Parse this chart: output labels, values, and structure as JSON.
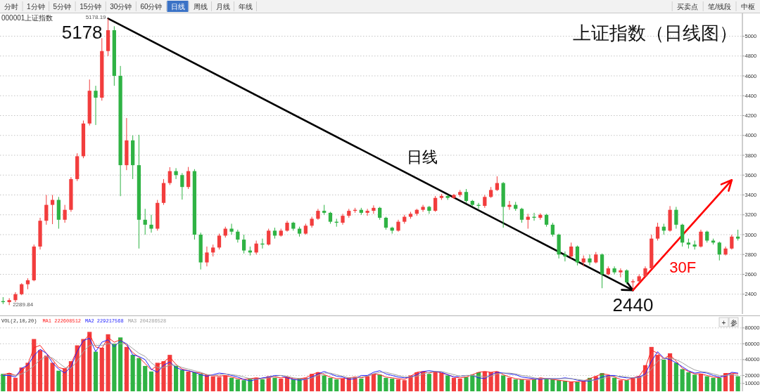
{
  "chart_data": [
    {
      "type": "candlestick",
      "title": "上证指数（日线图）",
      "categories": [
        null,
        null,
        null,
        null,
        null,
        null,
        null,
        null,
        null,
        null,
        null,
        null,
        null,
        null,
        null,
        null,
        null,
        null,
        null,
        null,
        null,
        null,
        null,
        null,
        null,
        null,
        null,
        null,
        null,
        null,
        null,
        null,
        null,
        null,
        null,
        null,
        null,
        null,
        null,
        null,
        null,
        null,
        null,
        null,
        null,
        null,
        null,
        null,
        null,
        null,
        null,
        null,
        null,
        null,
        null,
        null,
        null,
        null,
        null,
        null,
        null,
        null,
        null,
        null,
        null,
        null,
        null,
        null,
        null,
        null,
        null,
        null,
        null,
        null,
        null,
        null,
        null,
        null,
        null,
        null,
        null,
        null,
        null,
        null,
        null,
        null,
        null,
        null,
        null,
        null,
        null,
        null,
        null,
        null,
        null,
        null,
        null,
        null,
        null,
        null,
        null,
        null,
        null,
        null,
        null,
        null,
        null,
        null,
        null,
        null,
        null,
        null,
        null,
        null,
        null,
        null,
        null,
        null,
        null,
        null
      ],
      "ohlc": [
        [
          2330,
          2370,
          2300,
          2320
        ],
        [
          2320,
          2360,
          2289.84,
          2340
        ],
        [
          2340,
          2420,
          2320,
          2400
        ],
        [
          2400,
          2510,
          2390,
          2500
        ],
        [
          2500,
          2560,
          2450,
          2540
        ],
        [
          2540,
          2900,
          2530,
          2880
        ],
        [
          2880,
          3170,
          2850,
          3140
        ],
        [
          3140,
          3400,
          3100,
          3300
        ],
        [
          3300,
          3400,
          3106,
          3350
        ],
        [
          3350,
          3380,
          3060,
          3150
        ],
        [
          3150,
          3300,
          3120,
          3250
        ],
        [
          3250,
          3580,
          3230,
          3560
        ],
        [
          3560,
          3820,
          3540,
          3790
        ],
        [
          3790,
          4150,
          3770,
          4120
        ],
        [
          4120,
          4563,
          4100,
          4450
        ],
        [
          4450,
          4500,
          4105,
          4380
        ],
        [
          4380,
          4980,
          4350,
          4850
        ],
        [
          4850,
          5178.19,
          4800,
          5060
        ],
        [
          5060,
          5100,
          4500,
          4600
        ],
        [
          4600,
          4700,
          3388,
          3700
        ],
        [
          3700,
          4175,
          3650,
          3950
        ],
        [
          3950,
          4000,
          3560,
          3700
        ],
        [
          3700,
          4006,
          2860,
          3150
        ],
        [
          3150,
          3260,
          3000,
          3100
        ],
        [
          3100,
          3200,
          3020,
          3060
        ],
        [
          3060,
          3350,
          3040,
          3320
        ],
        [
          3320,
          3560,
          3300,
          3520
        ],
        [
          3520,
          3680,
          3500,
          3640
        ],
        [
          3640,
          3670,
          3560,
          3600
        ],
        [
          3600,
          3620,
          3353,
          3480
        ],
        [
          3480,
          3682,
          3460,
          3640
        ],
        [
          3640,
          3660,
          2950,
          3000
        ],
        [
          3000,
          3020,
          2649,
          2720
        ],
        [
          2720,
          2880,
          2680,
          2820
        ],
        [
          2820,
          2900,
          2780,
          2870
        ],
        [
          2870,
          3010,
          2850,
          2990
        ],
        [
          2990,
          3080,
          2970,
          3060
        ],
        [
          3060,
          3110,
          3000,
          3030
        ],
        [
          3030,
          3050,
          2920,
          2950
        ],
        [
          2950,
          3000,
          2810,
          2840
        ],
        [
          2840,
          2880,
          2790,
          2820
        ],
        [
          2820,
          2940,
          2800,
          2910
        ],
        [
          2910,
          2960,
          2860,
          2900
        ],
        [
          2900,
          3060,
          2890,
          3040
        ],
        [
          3040,
          3070,
          2960,
          2990
        ],
        [
          2990,
          3060,
          2980,
          3040
        ],
        [
          3040,
          3140,
          3030,
          3120
        ],
        [
          3120,
          3130,
          3040,
          3060
        ],
        [
          3060,
          3080,
          2980,
          3010
        ],
        [
          3010,
          3110,
          3000,
          3090
        ],
        [
          3090,
          3180,
          3070,
          3160
        ],
        [
          3160,
          3260,
          3150,
          3240
        ],
        [
          3240,
          3300,
          3200,
          3220
        ],
        [
          3220,
          3230,
          3110,
          3130
        ],
        [
          3130,
          3160,
          3080,
          3120
        ],
        [
          3120,
          3210,
          3100,
          3190
        ],
        [
          3190,
          3260,
          3170,
          3240
        ],
        [
          3240,
          3270,
          3220,
          3250
        ],
        [
          3250,
          3270,
          3200,
          3220
        ],
        [
          3220,
          3260,
          3190,
          3240
        ],
        [
          3240,
          3295,
          3210,
          3270
        ],
        [
          3270,
          3280,
          3150,
          3170
        ],
        [
          3170,
          3180,
          3050,
          3070
        ],
        [
          3070,
          3080,
          3010,
          3040
        ],
        [
          3040,
          3150,
          3030,
          3130
        ],
        [
          3130,
          3200,
          3110,
          3180
        ],
        [
          3180,
          3230,
          3160,
          3210
        ],
        [
          3210,
          3260,
          3190,
          3250
        ],
        [
          3250,
          3300,
          3230,
          3280
        ],
        [
          3280,
          3290,
          3210,
          3240
        ],
        [
          3240,
          3390,
          3230,
          3370
        ],
        [
          3370,
          3410,
          3350,
          3390
        ],
        [
          3390,
          3400,
          3350,
          3370
        ],
        [
          3370,
          3410,
          3360,
          3400
        ],
        [
          3400,
          3450,
          3380,
          3430
        ],
        [
          3430,
          3460,
          3320,
          3340
        ],
        [
          3340,
          3350,
          3290,
          3300
        ],
        [
          3300,
          3320,
          3260,
          3290
        ],
        [
          3290,
          3400,
          3270,
          3380
        ],
        [
          3380,
          3480,
          3370,
          3450
        ],
        [
          3450,
          3588,
          3440,
          3520
        ],
        [
          3520,
          3530,
          3070,
          3280
        ],
        [
          3280,
          3340,
          3250,
          3300
        ],
        [
          3300,
          3330,
          3240,
          3260
        ],
        [
          3260,
          3270,
          3120,
          3150
        ],
        [
          3150,
          3210,
          3060,
          3180
        ],
        [
          3180,
          3220,
          3140,
          3170
        ],
        [
          3170,
          3215,
          3150,
          3200
        ],
        [
          3200,
          3210,
          3080,
          3100
        ],
        [
          3100,
          3120,
          2980,
          3000
        ],
        [
          3000,
          3010,
          2760,
          2800
        ],
        [
          2800,
          2830,
          2730,
          2780
        ],
        [
          2780,
          2920,
          2760,
          2880
        ],
        [
          2880,
          2890,
          2690,
          2720
        ],
        [
          2720,
          2790,
          2680,
          2760
        ],
        [
          2760,
          2800,
          2690,
          2720
        ],
        [
          2720,
          2825,
          2710,
          2800
        ],
        [
          2800,
          2810,
          2460,
          2600
        ],
        [
          2600,
          2680,
          2590,
          2660
        ],
        [
          2660,
          2680,
          2600,
          2620
        ],
        [
          2620,
          2660,
          2570,
          2640
        ],
        [
          2640,
          2650,
          2500,
          2520
        ],
        [
          2520,
          2550,
          2440,
          2530
        ],
        [
          2530,
          2600,
          2510,
          2580
        ],
        [
          2580,
          2680,
          2570,
          2660
        ],
        [
          2660,
          3000,
          2650,
          2960
        ],
        [
          2960,
          3120,
          2940,
          3080
        ],
        [
          3080,
          3110,
          3000,
          3040
        ],
        [
          3040,
          3288,
          3030,
          3250
        ],
        [
          3250,
          3280,
          3060,
          3100
        ],
        [
          3100,
          3110,
          2880,
          2920
        ],
        [
          2920,
          2960,
          2860,
          2900
        ],
        [
          2900,
          2940,
          2850,
          2880
        ],
        [
          2880,
          3050,
          2870,
          3030
        ],
        [
          3030,
          3040,
          2920,
          2940
        ],
        [
          2940,
          2960,
          2900,
          2920
        ],
        [
          2920,
          2930,
          2740,
          2800
        ],
        [
          2800,
          2880,
          2790,
          2860
        ],
        [
          2860,
          3000,
          2850,
          2980
        ],
        [
          2980,
          3050,
          2940,
          2960
        ]
      ],
      "colors": [
        "#2fb344",
        "#f23d3d",
        "#f23d3d",
        "#f23d3d",
        "#f23d3d",
        "#f23d3d",
        "#f23d3d",
        "#f23d3d",
        "#f23d3d",
        "#2fb344",
        "#f23d3d",
        "#f23d3d",
        "#f23d3d",
        "#f23d3d",
        "#f23d3d",
        "#2fb344",
        "#f23d3d",
        "#f23d3d",
        "#2fb344",
        "#2fb344",
        "#f23d3d",
        "#2fb344",
        "#2fb344",
        "#2fb344",
        "#2fb344",
        "#f23d3d",
        "#f23d3d",
        "#f23d3d",
        "#2fb344",
        "#2fb344",
        "#f23d3d",
        "#2fb344",
        "#2fb344",
        "#f23d3d",
        "#f23d3d",
        "#f23d3d",
        "#f23d3d",
        "#2fb344",
        "#2fb344",
        "#2fb344",
        "#2fb344",
        "#f23d3d",
        "#2fb344",
        "#f23d3d",
        "#2fb344",
        "#f23d3d",
        "#f23d3d",
        "#2fb344",
        "#2fb344",
        "#f23d3d",
        "#f23d3d",
        "#f23d3d",
        "#2fb344",
        "#2fb344",
        "#2fb344",
        "#f23d3d",
        "#f23d3d",
        "#f23d3d",
        "#2fb344",
        "#f23d3d",
        "#f23d3d",
        "#2fb344",
        "#2fb344",
        "#2fb344",
        "#f23d3d",
        "#f23d3d",
        "#f23d3d",
        "#f23d3d",
        "#f23d3d",
        "#2fb344",
        "#f23d3d",
        "#f23d3d",
        "#2fb344",
        "#f23d3d",
        "#f23d3d",
        "#2fb344",
        "#2fb344",
        "#2fb344",
        "#f23d3d",
        "#f23d3d",
        "#f23d3d",
        "#2fb344",
        "#f23d3d",
        "#2fb344",
        "#2fb344",
        "#f23d3d",
        "#2fb344",
        "#f23d3d",
        "#2fb344",
        "#2fb344",
        "#2fb344",
        "#2fb344",
        "#f23d3d",
        "#2fb344",
        "#f23d3d",
        "#2fb344",
        "#f23d3d",
        "#2fb344",
        "#f23d3d",
        "#2fb344",
        "#f23d3d",
        "#2fb344",
        "#f23d3d",
        "#f23d3d",
        "#f23d3d",
        "#f23d3d",
        "#f23d3d",
        "#2fb344",
        "#f23d3d",
        "#2fb344",
        "#2fb344",
        "#2fb344",
        "#2fb344",
        "#f23d3d",
        "#2fb344",
        "#2fb344",
        "#2fb344",
        "#f23d3d",
        "#f23d3d",
        "#2fb344"
      ],
      "series": [
        {
          "type": "line",
          "name": "日线",
          "color": "#000000",
          "values": [
            null,
            null,
            null,
            null,
            null,
            null,
            null,
            null,
            null,
            null,
            null,
            null,
            null,
            null,
            null,
            null,
            null,
            5178,
            null,
            null,
            null,
            null,
            null,
            null,
            null,
            null,
            null,
            null,
            null,
            null,
            null,
            null,
            null,
            null,
            null,
            null,
            null,
            null,
            null,
            null,
            null,
            null,
            null,
            null,
            null,
            null,
            null,
            null,
            null,
            null,
            null,
            null,
            null,
            null,
            null,
            null,
            null,
            null,
            null,
            null,
            null,
            null,
            null,
            null,
            null,
            null,
            null,
            null,
            null,
            null,
            null,
            null,
            null,
            null,
            null,
            null,
            null,
            null,
            null,
            null,
            null,
            null,
            null,
            null,
            null,
            null,
            null,
            null,
            null,
            null,
            null,
            null,
            null,
            null,
            null,
            null,
            null,
            null,
            null,
            null,
            null,
            null,
            2440,
            null,
            null,
            null,
            null,
            null,
            null,
            null,
            null,
            null,
            null,
            null,
            null,
            null,
            null,
            null,
            null,
            null
          ]
        },
        {
          "type": "line",
          "name": "30F",
          "color": "#ff0000",
          "values": [
            null,
            null,
            null,
            null,
            null,
            null,
            null,
            null,
            null,
            null,
            null,
            null,
            null,
            null,
            null,
            null,
            null,
            null,
            null,
            null,
            null,
            null,
            null,
            null,
            null,
            null,
            null,
            null,
            null,
            null,
            null,
            null,
            null,
            null,
            null,
            null,
            null,
            null,
            null,
            null,
            null,
            null,
            null,
            null,
            null,
            null,
            null,
            null,
            null,
            null,
            null,
            null,
            null,
            null,
            null,
            null,
            null,
            null,
            null,
            null,
            null,
            null,
            null,
            null,
            null,
            null,
            null,
            null,
            null,
            null,
            null,
            null,
            null,
            null,
            null,
            null,
            null,
            null,
            null,
            null,
            null,
            null,
            null,
            null,
            null,
            null,
            null,
            null,
            null,
            null,
            null,
            null,
            null,
            null,
            null,
            null,
            null,
            null,
            null,
            null,
            null,
            null,
            2440,
            null,
            null,
            null,
            null,
            null,
            null,
            null,
            null,
            null,
            null,
            null,
            null,
            null,
            null,
            null,
            3550,
            null
          ]
        }
      ],
      "ylim": [
        2200,
        5230
      ],
      "yticks": [
        2400,
        2600,
        2800,
        3000,
        3200,
        3400,
        3600,
        3800,
        4000,
        4200,
        4400,
        4600,
        4800,
        5000
      ],
      "grid": "y",
      "tick_labels": "y",
      "annotations": [
        "分时",
        "1分钟",
        "5分钟",
        "15分钟",
        "30分钟",
        "60分钟",
        "日线",
        "周线",
        "月线",
        "年线",
        "买卖点",
        "笔/线段",
        "中枢",
        "000001上证指数",
        "5178",
        "2440",
        "5178.19",
        "2289.84"
      ]
    },
    {
      "type": "bar",
      "title": "VOL(2,10,20)",
      "categories": [
        null,
        null,
        null,
        null,
        null,
        null,
        null,
        null,
        null,
        null,
        null,
        null,
        null,
        null,
        null,
        null,
        null,
        null,
        null,
        null,
        null,
        null,
        null,
        null,
        null,
        null,
        null,
        null,
        null,
        null,
        null,
        null,
        null,
        null,
        null,
        null,
        null,
        null,
        null,
        null,
        null,
        null,
        null,
        null,
        null,
        null,
        null,
        null,
        null,
        null,
        null,
        null,
        null,
        null,
        null,
        null,
        null,
        null,
        null,
        null,
        null,
        null,
        null,
        null,
        null,
        null,
        null,
        null,
        null,
        null,
        null,
        null,
        null,
        null,
        null,
        null,
        null,
        null,
        null,
        null,
        null,
        null,
        null,
        null,
        null,
        null,
        null,
        null,
        null,
        null,
        null,
        null,
        null,
        null,
        null,
        null,
        null,
        null,
        null,
        null,
        null,
        null,
        null,
        null,
        null,
        null,
        null,
        null,
        null,
        null,
        null,
        null,
        null,
        null,
        null,
        null,
        null,
        null,
        null,
        null
      ],
      "series": [
        {
          "values": [
            22000,
            23000,
            17000,
            30000,
            36000,
            66000,
            52000,
            45000,
            36000,
            26000,
            29000,
            38000,
            58000,
            66000,
            75000,
            50000,
            55000,
            72000,
            60000,
            68000,
            56000,
            46000,
            42000,
            32000,
            25000,
            36000,
            38000,
            46000,
            32000,
            27000,
            25000,
            24000,
            22000,
            21000,
            19000,
            18000,
            20000,
            17000,
            15000,
            14000,
            16000,
            17000,
            15000,
            19000,
            17000,
            16000,
            18000,
            15000,
            16000,
            17000,
            22000,
            24000,
            20000,
            17000,
            15000,
            16000,
            17000,
            18000,
            16000,
            19000,
            22000,
            21000,
            17000,
            16000,
            15000,
            14000,
            20000,
            24000,
            25000,
            22000,
            25000,
            23000,
            20000,
            17000,
            16000,
            18000,
            21000,
            24000,
            25000,
            24000,
            25000,
            20000,
            17000,
            15000,
            15000,
            14000,
            15000,
            17000,
            16000,
            15000,
            14000,
            13000,
            12000,
            12000,
            13000,
            17000,
            19000,
            23000,
            20000,
            17000,
            14000,
            14000,
            17000,
            19000,
            33000,
            56000,
            46000,
            40000,
            48000,
            36000,
            28000,
            24000,
            21000,
            22000,
            19000,
            17000,
            17000,
            23000,
            22000,
            19000
          ],
          "colors": [
            "#2fb344",
            "#f23d3d",
            "#f23d3d",
            "#f23d3d",
            "#f23d3d",
            "#f23d3d",
            "#f23d3d",
            "#f23d3d",
            "#f23d3d",
            "#2fb344",
            "#f23d3d",
            "#f23d3d",
            "#f23d3d",
            "#f23d3d",
            "#f23d3d",
            "#2fb344",
            "#f23d3d",
            "#f23d3d",
            "#2fb344",
            "#2fb344",
            "#f23d3d",
            "#2fb344",
            "#2fb344",
            "#2fb344",
            "#2fb344",
            "#f23d3d",
            "#f23d3d",
            "#f23d3d",
            "#2fb344",
            "#2fb344",
            "#f23d3d",
            "#2fb344",
            "#2fb344",
            "#f23d3d",
            "#f23d3d",
            "#f23d3d",
            "#f23d3d",
            "#2fb344",
            "#2fb344",
            "#2fb344",
            "#2fb344",
            "#f23d3d",
            "#2fb344",
            "#f23d3d",
            "#2fb344",
            "#f23d3d",
            "#f23d3d",
            "#2fb344",
            "#2fb344",
            "#f23d3d",
            "#f23d3d",
            "#f23d3d",
            "#2fb344",
            "#2fb344",
            "#2fb344",
            "#f23d3d",
            "#f23d3d",
            "#f23d3d",
            "#2fb344",
            "#f23d3d",
            "#f23d3d",
            "#2fb344",
            "#2fb344",
            "#2fb344",
            "#f23d3d",
            "#f23d3d",
            "#f23d3d",
            "#f23d3d",
            "#f23d3d",
            "#2fb344",
            "#f23d3d",
            "#f23d3d",
            "#2fb344",
            "#f23d3d",
            "#f23d3d",
            "#2fb344",
            "#2fb344",
            "#2fb344",
            "#f23d3d",
            "#f23d3d",
            "#f23d3d",
            "#2fb344",
            "#f23d3d",
            "#2fb344",
            "#2fb344",
            "#f23d3d",
            "#2fb344",
            "#f23d3d",
            "#2fb344",
            "#2fb344",
            "#2fb344",
            "#2fb344",
            "#f23d3d",
            "#2fb344",
            "#f23d3d",
            "#2fb344",
            "#f23d3d",
            "#2fb344",
            "#f23d3d",
            "#2fb344",
            "#f23d3d",
            "#2fb344",
            "#f23d3d",
            "#f23d3d",
            "#f23d3d",
            "#f23d3d",
            "#f23d3d",
            "#2fb344",
            "#f23d3d",
            "#2fb344",
            "#2fb344",
            "#2fb344",
            "#2fb344",
            "#f23d3d",
            "#2fb344",
            "#2fb344",
            "#2fb344",
            "#f23d3d",
            "#f23d3d",
            "#2fb344"
          ]
        },
        {
          "type": "line",
          "name": "MA1 222608512",
          "color": "#ff2020",
          "values": [
            21000,
            23000,
            20000,
            25000,
            34000,
            55000,
            58000,
            48000,
            40000,
            30000,
            28000,
            35000,
            52000,
            63000,
            72000,
            56000,
            54000,
            68000,
            62000,
            65000,
            58000,
            49000,
            43000,
            35000,
            27000,
            33000,
            37000,
            43000,
            34000,
            28000,
            26000,
            24000,
            23000,
            21000,
            20000,
            19000,
            20000,
            18000,
            16000,
            15000,
            16000,
            17000,
            16000,
            18000,
            18000,
            17000,
            18000,
            16000,
            16000,
            17000,
            21000,
            24000,
            21000,
            18000,
            16000,
            16000,
            17000,
            18000,
            17000,
            19000,
            22000,
            21000,
            18000,
            17000,
            16000,
            15000,
            19000,
            24000,
            25000,
            23000,
            25000,
            23000,
            21000,
            18000,
            17000,
            18000,
            21000,
            24000,
            25000,
            24000,
            25000,
            21000,
            18000,
            16000,
            15000,
            15000,
            15000,
            17000,
            16000,
            15000,
            14000,
            13000,
            12000,
            12000,
            13000,
            16000,
            19000,
            22000,
            21000,
            18000,
            15000,
            14000,
            17000,
            19000,
            30000,
            52000,
            48000,
            41000,
            46000,
            38000,
            29000,
            25000,
            22000,
            22000,
            20000,
            18000,
            17000,
            22000,
            23000,
            22000
          ]
        },
        {
          "type": "line",
          "name": "MA2 229217568",
          "color": "#2424ff",
          "values": [
            20000,
            20000,
            18000,
            29000,
            33000,
            45000,
            53000,
            48000,
            36000,
            28000,
            23000,
            31000,
            50000,
            64000,
            67000,
            50000,
            62000,
            65000,
            56000,
            64000,
            60000,
            46000,
            44000,
            40000,
            28000,
            24000,
            33000,
            37000,
            30000,
            27000,
            26000,
            24000,
            21000,
            19000,
            21000,
            23000,
            22000,
            20000,
            18000,
            15000,
            13000,
            15000,
            17000,
            18000,
            20000,
            20000,
            17000,
            15000,
            14000,
            15000,
            18000,
            22000,
            25000,
            22000,
            19000,
            18000,
            15000,
            16000,
            20000,
            20000,
            24000,
            26000,
            22000,
            20000,
            18000,
            17000,
            18000,
            21000,
            25000,
            26000,
            25000,
            24000,
            21000,
            18000,
            19000,
            20000,
            20000,
            17000,
            16000,
            21000,
            24000,
            23000,
            22000,
            21000,
            18000,
            17000,
            16000,
            15000,
            16000,
            16000,
            16000,
            17000,
            16000,
            14000,
            13000,
            13000,
            15000,
            18000,
            20000,
            20000,
            18000,
            17000,
            17000,
            18000,
            22000,
            38000,
            50000,
            42000,
            40000,
            36000,
            31000,
            26000,
            23000,
            24000,
            23000,
            20000,
            18000,
            19000,
            24000,
            23000
          ]
        },
        {
          "type": "line",
          "name": "MA3 204286528",
          "color": "#a0a0a0",
          "values": [
            21000,
            21000,
            20000,
            22000,
            26000,
            32000,
            40000,
            44000,
            42000,
            36000,
            30000,
            29000,
            38000,
            50000,
            58000,
            58000,
            58000,
            60000,
            60000,
            60000,
            60000,
            54000,
            48000,
            44000,
            36000,
            30000,
            30000,
            33000,
            33000,
            30000,
            28000,
            26000,
            24000,
            21000,
            20000,
            21000,
            22000,
            21000,
            20000,
            18000,
            16000,
            15000,
            16000,
            17000,
            19000,
            20000,
            19000,
            17000,
            16000,
            15000,
            17000,
            20000,
            23000,
            23000,
            21000,
            19000,
            17000,
            17000,
            18000,
            19000,
            22000,
            24000,
            24000,
            22000,
            20000,
            18000,
            18000,
            19000,
            22000,
            24000,
            25000,
            25000,
            23000,
            21000,
            19000,
            20000,
            20000,
            19000,
            18000,
            19000,
            22000,
            23000,
            23000,
            22000,
            20000,
            19000,
            17000,
            16000,
            16000,
            16000,
            16000,
            16000,
            16000,
            15000,
            14000,
            14000,
            14000,
            16000,
            18000,
            19000,
            19000,
            18000,
            17000,
            17000,
            20000,
            28000,
            38000,
            42000,
            42000,
            40000,
            36000,
            31000,
            27000,
            25000,
            24000,
            22000,
            20000,
            20000,
            21000,
            20000
          ]
        }
      ],
      "ylim": [
        0,
        94000
      ],
      "yticks": [
        10000,
        20000,
        40000,
        60000,
        80000
      ],
      "grid": "y",
      "tick_labels": "y",
      "legend": "top left",
      "annotations": [
        "+",
        "参"
      ]
    }
  ]
}
